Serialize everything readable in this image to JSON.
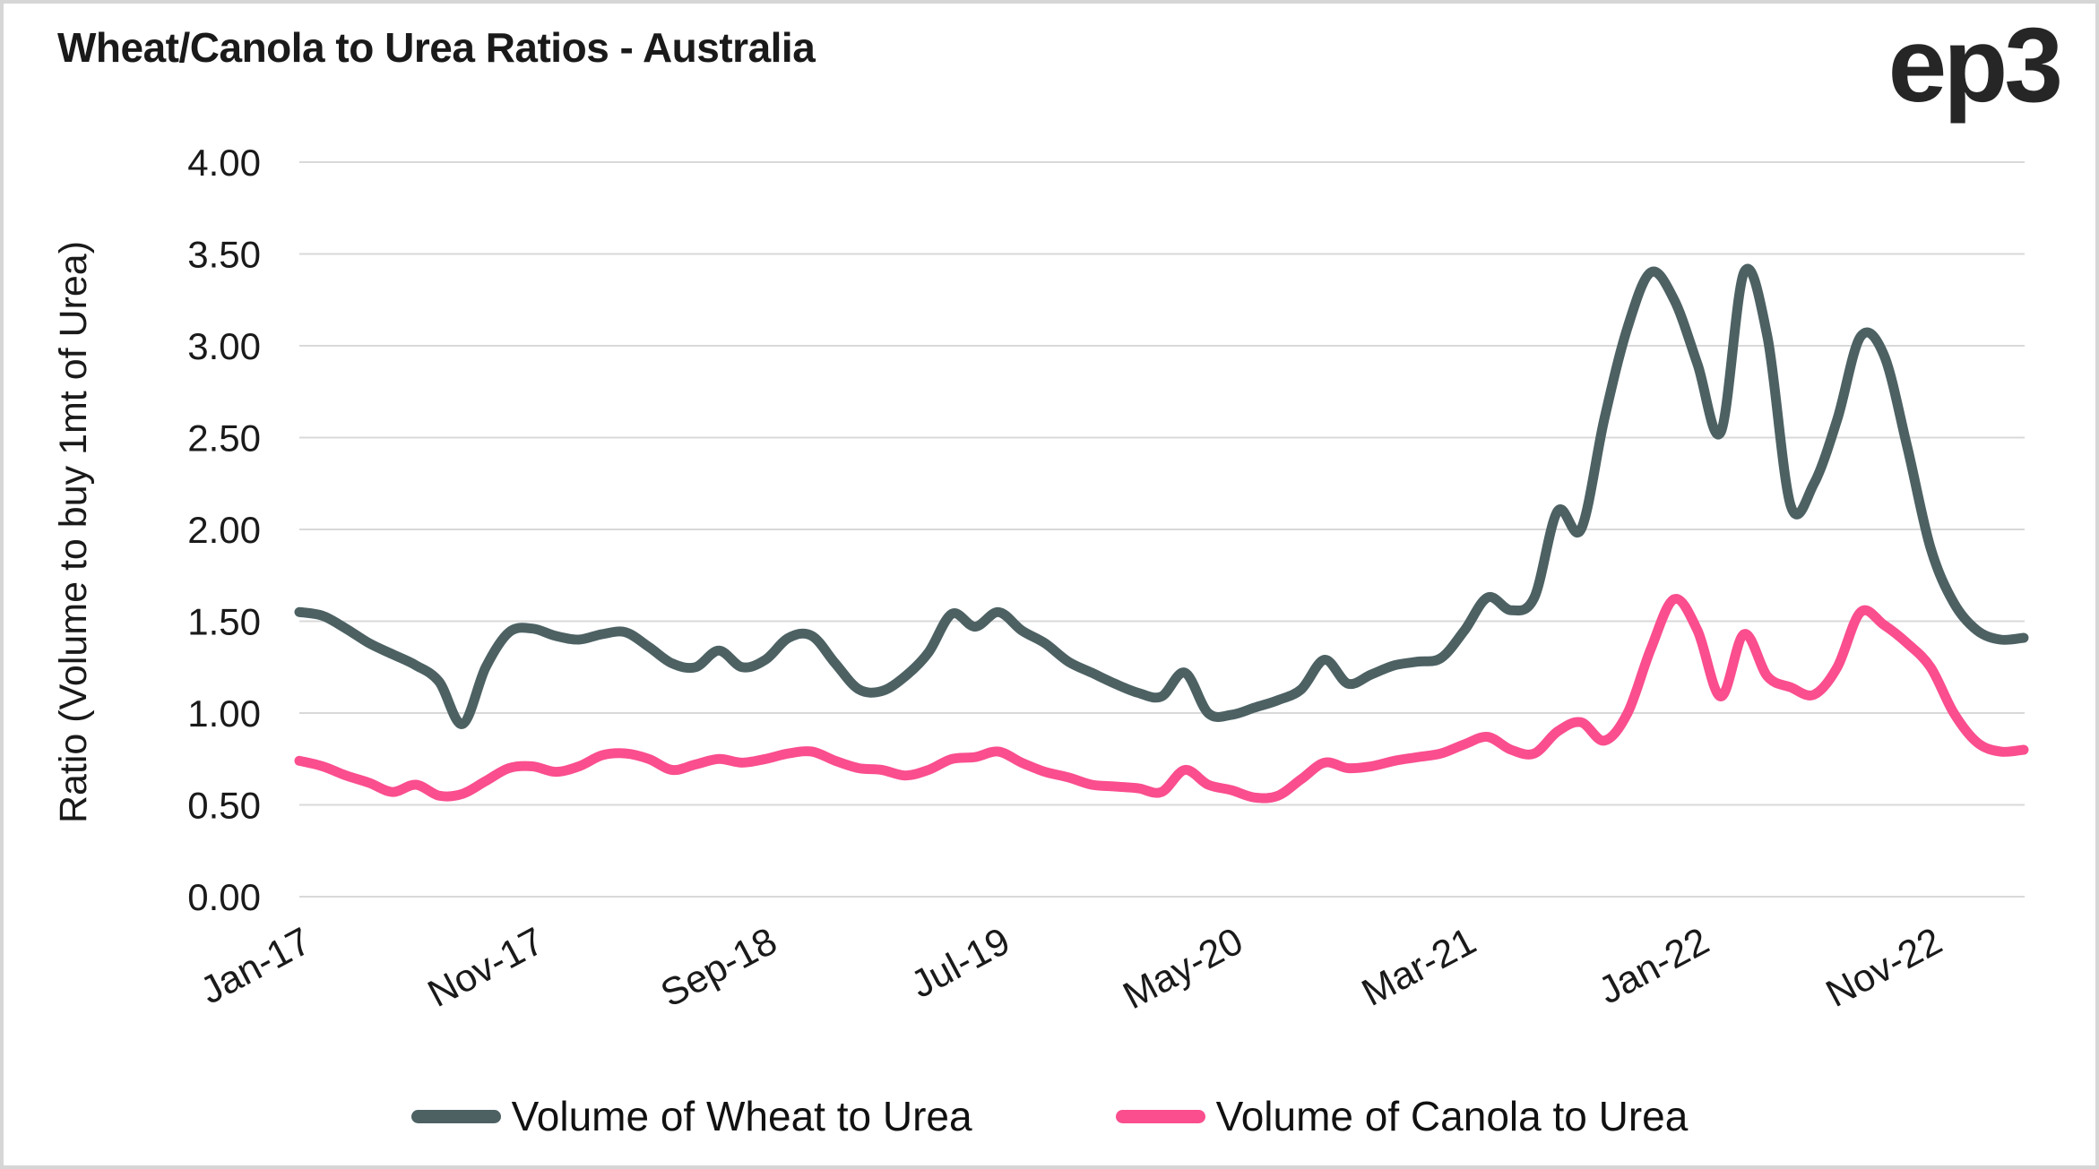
{
  "header": {
    "title": "Wheat/Canola to Urea Ratios - Australia",
    "logo": "ep3"
  },
  "y_axis": {
    "label": "Ratio (Volume to buy 1mt of Urea)",
    "tick_labels": [
      "0.00",
      "0.50",
      "1.00",
      "1.50",
      "2.00",
      "2.50",
      "3.00",
      "3.50",
      "4.00"
    ]
  },
  "x_axis": {
    "tick_labels": [
      "Jan-17",
      "Nov-17",
      "Sep-18",
      "Jul-19",
      "May-20",
      "Mar-21",
      "Jan-22",
      "Nov-22"
    ],
    "tick_indices": [
      0,
      10,
      20,
      30,
      40,
      50,
      60,
      70
    ]
  },
  "legend": {
    "items": [
      {
        "label": "Volume of Wheat to Urea",
        "color": "#4D6163"
      },
      {
        "label": "Volume of Canola to Urea",
        "color": "#FA4E8E"
      }
    ]
  },
  "colors": {
    "wheat": "#4D6163",
    "canola": "#FA4E8E",
    "gridline": "#d9d9d9",
    "text": "#1a1a1a",
    "border": "#d6d6d6"
  },
  "chart_data": {
    "type": "line",
    "title": "Wheat/Canola to Urea Ratios - Australia",
    "xlabel": "",
    "ylabel": "Ratio (Volume to buy 1mt of Urea)",
    "ylim": [
      0,
      4
    ],
    "y_ticks": [
      0,
      0.5,
      1.0,
      1.5,
      2.0,
      2.5,
      3.0,
      3.5,
      4.0
    ],
    "grid": true,
    "legend_position": "bottom",
    "smoothed": true,
    "x": [
      "Jan-17",
      "Feb-17",
      "Mar-17",
      "Apr-17",
      "May-17",
      "Jun-17",
      "Jul-17",
      "Aug-17",
      "Sep-17",
      "Oct-17",
      "Nov-17",
      "Dec-17",
      "Jan-18",
      "Feb-18",
      "Mar-18",
      "Apr-18",
      "May-18",
      "Jun-18",
      "Jul-18",
      "Aug-18",
      "Sep-18",
      "Oct-18",
      "Nov-18",
      "Dec-18",
      "Jan-19",
      "Feb-19",
      "Mar-19",
      "Apr-19",
      "May-19",
      "Jun-19",
      "Jul-19",
      "Aug-19",
      "Sep-19",
      "Oct-19",
      "Nov-19",
      "Dec-19",
      "Jan-20",
      "Feb-20",
      "Mar-20",
      "Apr-20",
      "May-20",
      "Jun-20",
      "Jul-20",
      "Aug-20",
      "Sep-20",
      "Oct-20",
      "Nov-20",
      "Dec-20",
      "Jan-21",
      "Feb-21",
      "Mar-21",
      "Apr-21",
      "May-21",
      "Jun-21",
      "Jul-21",
      "Aug-21",
      "Sep-21",
      "Oct-21",
      "Nov-21",
      "Dec-21",
      "Jan-22",
      "Feb-22",
      "Mar-22",
      "Apr-22",
      "May-22",
      "Jun-22",
      "Jul-22",
      "Aug-22",
      "Sep-22",
      "Oct-22",
      "Nov-22",
      "Dec-22",
      "Jan-23",
      "Feb-23",
      "Mar-23"
    ],
    "series": [
      {
        "name": "Volume of Wheat to Urea",
        "color": "#4D6163",
        "values": [
          1.55,
          1.53,
          1.46,
          1.38,
          1.32,
          1.26,
          1.17,
          0.94,
          1.25,
          1.44,
          1.46,
          1.42,
          1.4,
          1.43,
          1.44,
          1.36,
          1.27,
          1.25,
          1.34,
          1.25,
          1.29,
          1.41,
          1.42,
          1.27,
          1.13,
          1.12,
          1.2,
          1.33,
          1.54,
          1.47,
          1.55,
          1.45,
          1.38,
          1.28,
          1.22,
          1.16,
          1.11,
          1.09,
          1.22,
          1.0,
          0.99,
          1.03,
          1.07,
          1.13,
          1.29,
          1.16,
          1.21,
          1.26,
          1.28,
          1.3,
          1.45,
          1.63,
          1.56,
          1.63,
          2.1,
          2.0,
          2.6,
          3.1,
          3.4,
          3.25,
          2.9,
          2.53,
          3.4,
          3.05,
          2.13,
          2.25,
          2.6,
          3.05,
          2.95,
          2.45,
          1.9,
          1.6,
          1.45,
          1.4,
          1.41
        ]
      },
      {
        "name": "Volume of Canola to Urea",
        "color": "#FA4E8E",
        "values": [
          0.74,
          0.71,
          0.66,
          0.62,
          0.57,
          0.61,
          0.55,
          0.56,
          0.63,
          0.7,
          0.71,
          0.68,
          0.71,
          0.77,
          0.78,
          0.75,
          0.69,
          0.72,
          0.75,
          0.73,
          0.75,
          0.78,
          0.79,
          0.74,
          0.7,
          0.69,
          0.66,
          0.69,
          0.75,
          0.76,
          0.79,
          0.73,
          0.68,
          0.65,
          0.61,
          0.6,
          0.59,
          0.57,
          0.69,
          0.61,
          0.58,
          0.54,
          0.55,
          0.64,
          0.73,
          0.7,
          0.71,
          0.74,
          0.76,
          0.78,
          0.83,
          0.87,
          0.8,
          0.78,
          0.9,
          0.95,
          0.85,
          1.0,
          1.35,
          1.62,
          1.45,
          1.09,
          1.43,
          1.2,
          1.14,
          1.1,
          1.25,
          1.55,
          1.48,
          1.38,
          1.25,
          1.0,
          0.84,
          0.79,
          0.8
        ]
      }
    ]
  }
}
